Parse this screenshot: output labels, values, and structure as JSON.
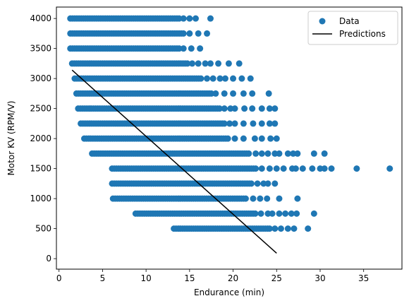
{
  "chart_data": {
    "type": "scatter",
    "xlabel": "Endurance (min)",
    "ylabel": "Motor KV (RPM/V)",
    "xlim": [
      -0.3,
      39.4
    ],
    "ylim": [
      -175,
      4190
    ],
    "x_ticks": [
      0,
      5,
      10,
      15,
      20,
      25,
      30,
      35
    ],
    "y_ticks": [
      0,
      500,
      1000,
      1500,
      2000,
      2500,
      3000,
      3500,
      4000
    ],
    "grid": false,
    "legend_placement": "top-right",
    "colors": {
      "data": "#1f77b4",
      "predictions": "#000000"
    },
    "legend": [
      {
        "label": "Data",
        "marker": "circle",
        "color": "#1f77b4"
      },
      {
        "label": "Predictions",
        "marker": "line",
        "color": "#000000"
      }
    ],
    "series": [
      {
        "name": "Data",
        "kind": "scatter",
        "bands": [
          {
            "y": 4000,
            "x_range": [
              1.3,
              14.0
            ],
            "sparse": [
              14.3,
              15.0,
              15.7,
              17.4
            ]
          },
          {
            "y": 3750,
            "x_range": [
              1.3,
              14.5
            ],
            "sparse": [
              15.0,
              16.0,
              17.0
            ]
          },
          {
            "y": 3500,
            "x_range": [
              1.3,
              13.8
            ],
            "sparse": [
              14.3,
              15.2,
              16.2
            ]
          },
          {
            "y": 3250,
            "x_range": [
              1.5,
              14.8
            ],
            "sparse": [
              15.3,
              16.0,
              16.8,
              17.4,
              18.3,
              19.5,
              20.7
            ]
          },
          {
            "y": 3000,
            "x_range": [
              1.8,
              16.5
            ],
            "sparse": [
              17.0,
              17.7,
              18.5,
              19.1,
              20.0,
              21.0,
              22.0
            ]
          },
          {
            "y": 2750,
            "x_range": [
              2.0,
              17.5
            ],
            "sparse": [
              18.0,
              19.0,
              20.0,
              21.2,
              22.2,
              24.1
            ]
          },
          {
            "y": 2500,
            "x_range": [
              2.2,
              18.6
            ],
            "sparse": [
              19.0,
              19.7,
              20.2,
              21.3,
              22.2,
              23.3,
              24.2,
              24.8
            ]
          },
          {
            "y": 2250,
            "x_range": [
              2.5,
              19.0
            ],
            "sparse": [
              19.6,
              20.2,
              21.2,
              22.3,
              23.3,
              24.2,
              24.8
            ]
          },
          {
            "y": 2000,
            "x_range": [
              2.9,
              19.5
            ],
            "sparse": [
              20.2,
              21.2,
              22.5,
              23.3,
              24.3,
              25.0
            ]
          },
          {
            "y": 1750,
            "x_range": [
              3.8,
              22.0
            ],
            "sparse": [
              22.6,
              23.3,
              24.0,
              24.8,
              25.3,
              26.3,
              26.9,
              27.4,
              29.3,
              30.5
            ]
          },
          {
            "y": 1500,
            "x_range": [
              6.1,
              22.6
            ],
            "sparse": [
              23.3,
              24.2,
              25.0,
              25.8,
              26.8,
              27.2,
              28.0,
              29.1,
              30.0,
              30.5,
              31.3,
              34.2,
              38.0
            ]
          },
          {
            "y": 1250,
            "x_range": [
              6.1,
              22.2
            ],
            "sparse": [
              22.8,
              23.5,
              24.0,
              24.8
            ]
          },
          {
            "y": 1000,
            "x_range": [
              6.2,
              21.5
            ],
            "sparse": [
              22.3,
              23.1,
              23.9,
              25.3,
              27.4
            ]
          },
          {
            "y": 750,
            "x_range": [
              8.8,
              22.6
            ],
            "sparse": [
              23.2,
              24.0,
              24.5,
              25.3,
              26.0,
              26.7,
              27.3,
              29.3
            ]
          },
          {
            "y": 500,
            "x_range": [
              13.2,
              24.3
            ],
            "sparse": [
              24.8,
              25.5,
              26.3,
              27.0,
              28.6
            ]
          }
        ]
      },
      {
        "name": "Predictions",
        "kind": "line",
        "points": [
          [
            1.5,
            3140
          ],
          [
            25.0,
            90
          ]
        ]
      }
    ]
  }
}
